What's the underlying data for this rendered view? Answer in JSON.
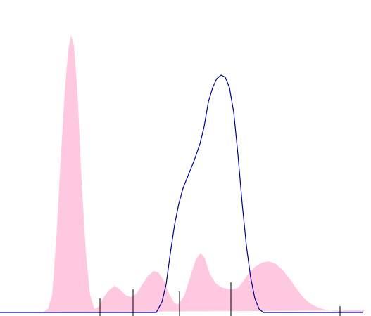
{
  "chart_data": {
    "type": "area",
    "xlim": [
      0,
      527
    ],
    "ylim": [
      0,
      100
    ],
    "series": [
      {
        "type": "area",
        "color": "#ffc8e1",
        "x": [
          0,
          60,
          68,
          74,
          80,
          86,
          92,
          97,
          101,
          105,
          110,
          116,
          122,
          128,
          134,
          140,
          148,
          156,
          163,
          170,
          178,
          186,
          194,
          202,
          210,
          218,
          225,
          232,
          240,
          248,
          254,
          262,
          270,
          278,
          285,
          291,
          298,
          306,
          314,
          322,
          330,
          338,
          346,
          354,
          362,
          372,
          382,
          392,
          402,
          412,
          422,
          432,
          442,
          452,
          462,
          472,
          482,
          492,
          515,
          518,
          527
        ],
        "values": [
          0,
          0,
          1.25,
          6.25,
          26.25,
          53.75,
          78.75,
          93.75,
          98.75,
          95,
          78.75,
          46.25,
          21.25,
          6.25,
          1.25,
          2,
          5.75,
          8.25,
          9.5,
          8.25,
          6.25,
          5.5,
          6.75,
          10,
          13,
          14.75,
          14.25,
          11.75,
          6.75,
          3.25,
          3,
          6.25,
          12.5,
          18.75,
          21.25,
          19.25,
          13.75,
          10.5,
          9,
          8.5,
          8.25,
          8.75,
          11.25,
          14.25,
          16.25,
          17.75,
          18.25,
          17.25,
          15,
          11.75,
          8.25,
          5,
          3,
          1.75,
          1,
          0.5,
          0.25,
          0,
          0,
          0.75,
          0.75
        ]
      },
      {
        "type": "line",
        "color": "#00008b",
        "x": [
          0,
          222,
          230,
          236,
          242,
          248,
          254,
          260,
          268,
          276,
          284,
          290,
          296,
          302,
          308,
          314,
          320,
          326,
          332,
          338,
          344,
          350,
          356,
          362,
          368,
          374,
          515
        ],
        "values": [
          0,
          0,
          3.75,
          10,
          21.25,
          31.25,
          38.75,
          44.25,
          49.25,
          54.25,
          60,
          66.25,
          75,
          80,
          83.25,
          84.5,
          83.75,
          80,
          71.25,
          56.25,
          38.75,
          23.75,
          12.5,
          5,
          1.25,
          0,
          0
        ]
      },
      {
        "type": "spike",
        "color": "#000000",
        "x": [
          142,
          189,
          255,
          328,
          483
        ],
        "values": [
          5,
          8.25,
          7.5,
          10.75,
          2.25
        ]
      }
    ]
  }
}
